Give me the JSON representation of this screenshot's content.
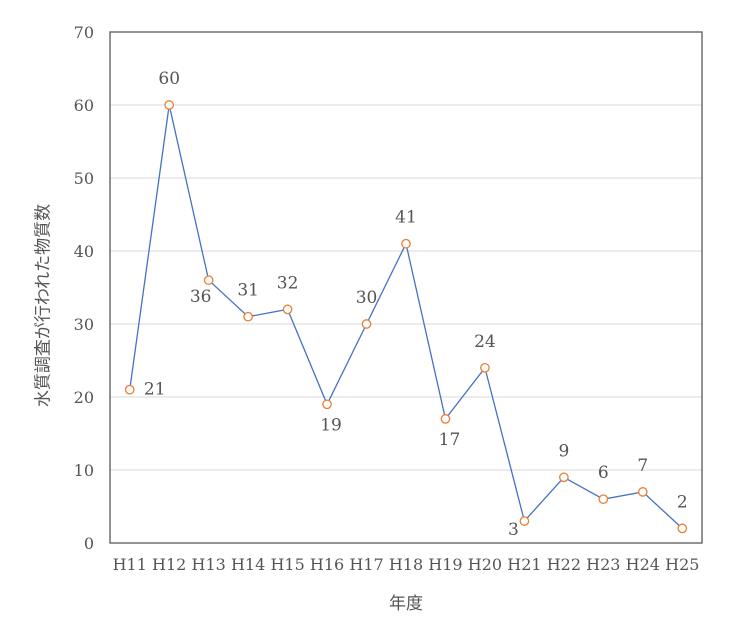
{
  "chart_data": {
    "type": "line",
    "title": "",
    "xlabel": "年度",
    "ylabel": "水質調査が行われた物質数",
    "categories": [
      "H11",
      "H12",
      "H13",
      "H14",
      "H15",
      "H16",
      "H17",
      "H18",
      "H19",
      "H20",
      "H21",
      "H22",
      "H23",
      "H24",
      "H25"
    ],
    "series": [
      {
        "values": [
          21,
          60,
          36,
          31,
          32,
          19,
          30,
          41,
          17,
          24,
          3,
          9,
          6,
          7,
          2
        ]
      }
    ],
    "data_labels": [
      "21",
      "60",
      "36",
      "31",
      "32",
      "19",
      "30",
      "41",
      "17",
      "24",
      "3",
      "9",
      "6",
      "7",
      "2"
    ],
    "ylim": [
      0,
      70
    ],
    "yticks": [
      0,
      10,
      20,
      30,
      40,
      50,
      60,
      70
    ],
    "ytick_labels": [
      "0",
      "10",
      "20",
      "30",
      "40",
      "50",
      "60",
      "70"
    ],
    "grid": true,
    "legend": "none",
    "colors": {
      "line": "#4472C4",
      "marker": "#ED7D31",
      "grid": "#D9D9D9",
      "frame": "#595959",
      "text": "#555555"
    }
  }
}
